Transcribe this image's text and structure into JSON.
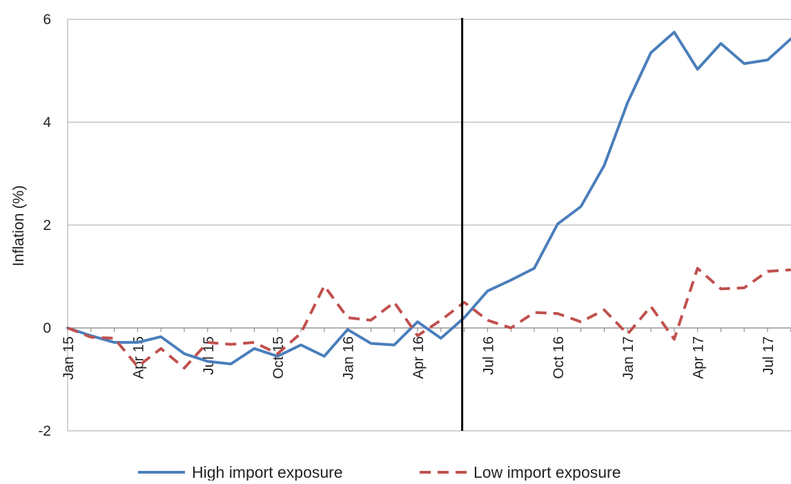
{
  "chart_data": {
    "type": "line",
    "ylabel": "Inflation (%)",
    "xlabel": "",
    "ylim": [
      -2,
      6
    ],
    "yticks": [
      -2,
      0,
      2,
      4,
      6
    ],
    "grid": "horizontal",
    "x": [
      "Jan 15",
      "Feb 15",
      "Mar 15",
      "Apr 15",
      "May 15",
      "Jun 15",
      "Jul 15",
      "Aug 15",
      "Sep 15",
      "Oct 15",
      "Nov 15",
      "Dec 15",
      "Jan 16",
      "Feb 16",
      "Mar 16",
      "Apr 16",
      "May 16",
      "Jun 16",
      "Jul 16",
      "Aug 16",
      "Sep 16",
      "Oct 16",
      "Nov 16",
      "Dec 16",
      "Jan 17",
      "Feb 17",
      "Mar 17",
      "Apr 17",
      "May 17",
      "Jun 17",
      "Jul 17",
      "Aug 17"
    ],
    "tick_labels": [
      "Jan 15",
      "Apr 15",
      "Jul 15",
      "Oct 15",
      "Jan 16",
      "Apr 16",
      "Jul 16",
      "Oct 16",
      "Jan 17",
      "Apr 17",
      "Jul 17"
    ],
    "tick_every": 3,
    "vertical_marker_x": "Jun 16",
    "series": [
      {
        "name": "High import exposure",
        "color": "#4a7ebb",
        "style": "solid",
        "values": [
          0.0,
          -0.15,
          -0.28,
          -0.28,
          -0.17,
          -0.5,
          -0.65,
          -0.7,
          -0.4,
          -0.55,
          -0.33,
          -0.55,
          -0.03,
          -0.3,
          -0.33,
          0.12,
          -0.2,
          0.2,
          0.72,
          0.93,
          1.16,
          2.02,
          2.36,
          3.16,
          4.38,
          5.35,
          5.75,
          5.03,
          5.53,
          5.14,
          5.21,
          5.62
        ]
      },
      {
        "name": "Low import exposure",
        "color": "#c0504d",
        "style": "dashed",
        "values": [
          0.0,
          -0.18,
          -0.2,
          -0.75,
          -0.4,
          -0.78,
          -0.28,
          -0.32,
          -0.28,
          -0.5,
          -0.1,
          0.82,
          0.2,
          0.15,
          0.5,
          -0.15,
          0.15,
          0.5,
          0.15,
          0.0,
          0.3,
          0.28,
          0.12,
          0.35,
          -0.12,
          0.42,
          -0.22,
          1.16,
          0.76,
          0.78,
          1.1,
          1.13
        ]
      }
    ],
    "legend_position": "bottom"
  }
}
